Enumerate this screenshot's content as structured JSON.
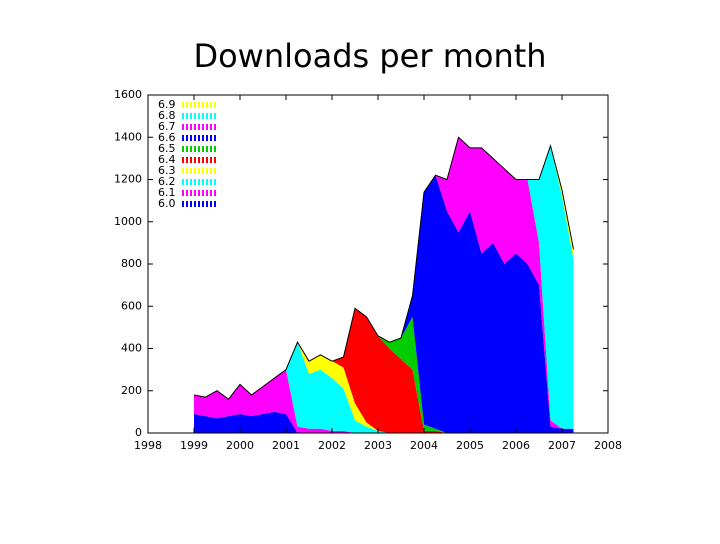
{
  "chart_data": {
    "type": "stacked_area",
    "title": "Downloads per month",
    "x": [
      1999,
      1999.25,
      1999.5,
      1999.75,
      2000,
      2000.25,
      2000.5,
      2000.75,
      2001,
      2001.25,
      2001.5,
      2001.75,
      2002,
      2002.25,
      2002.5,
      2002.75,
      2003,
      2003.25,
      2003.5,
      2003.75,
      2004,
      2004.25,
      2004.5,
      2004.75,
      2005,
      2005.25,
      2005.5,
      2005.75,
      2006,
      2006.25,
      2006.5,
      2006.75,
      2007,
      2007.25
    ],
    "series": [
      {
        "name": "6.0",
        "color": "#0000ff",
        "values": [
          90,
          80,
          70,
          80,
          90,
          80,
          90,
          100,
          90,
          0,
          0,
          0,
          0,
          0,
          0,
          0,
          0,
          0,
          0,
          0,
          0,
          0,
          0,
          0,
          0,
          0,
          0,
          0,
          0,
          0,
          0,
          0,
          0,
          0
        ]
      },
      {
        "name": "6.1",
        "color": "#ff00ff",
        "values": [
          90,
          90,
          130,
          80,
          140,
          100,
          130,
          160,
          210,
          30,
          20,
          20,
          10,
          10,
          0,
          0,
          0,
          0,
          0,
          0,
          0,
          0,
          0,
          0,
          0,
          0,
          0,
          0,
          0,
          0,
          0,
          0,
          0,
          0
        ]
      },
      {
        "name": "6.2",
        "color": "#00ffff",
        "values": [
          0,
          0,
          0,
          0,
          0,
          0,
          0,
          0,
          0,
          400,
          260,
          280,
          250,
          200,
          60,
          30,
          10,
          0,
          0,
          0,
          0,
          0,
          0,
          0,
          0,
          0,
          0,
          0,
          0,
          0,
          0,
          0,
          0,
          0
        ]
      },
      {
        "name": "6.3",
        "color": "#ffff00",
        "values": [
          0,
          0,
          0,
          0,
          0,
          0,
          0,
          0,
          0,
          0,
          60,
          70,
          80,
          100,
          80,
          20,
          0,
          0,
          0,
          0,
          0,
          0,
          0,
          0,
          0,
          0,
          0,
          0,
          0,
          0,
          0,
          0,
          0,
          0
        ]
      },
      {
        "name": "6.4",
        "color": "#ff0000",
        "values": [
          0,
          0,
          0,
          0,
          0,
          0,
          0,
          0,
          0,
          0,
          0,
          0,
          0,
          50,
          450,
          500,
          450,
          400,
          350,
          300,
          10,
          10,
          0,
          0,
          0,
          0,
          0,
          0,
          0,
          0,
          0,
          0,
          0,
          0
        ]
      },
      {
        "name": "6.5",
        "color": "#00cc00",
        "values": [
          0,
          0,
          0,
          0,
          0,
          0,
          0,
          0,
          0,
          0,
          0,
          0,
          0,
          0,
          0,
          0,
          0,
          30,
          100,
          250,
          30,
          10,
          0,
          0,
          0,
          0,
          0,
          0,
          0,
          0,
          0,
          0,
          0,
          0
        ]
      },
      {
        "name": "6.6",
        "color": "#0000ff",
        "values": [
          0,
          0,
          0,
          0,
          0,
          0,
          0,
          0,
          0,
          0,
          0,
          0,
          0,
          0,
          0,
          0,
          0,
          0,
          0,
          100,
          1100,
          1200,
          1050,
          950,
          1050,
          850,
          900,
          800,
          850,
          800,
          700,
          30,
          20,
          20
        ]
      },
      {
        "name": "6.7",
        "color": "#ff00ff",
        "values": [
          0,
          0,
          0,
          0,
          0,
          0,
          0,
          0,
          0,
          0,
          0,
          0,
          0,
          0,
          0,
          0,
          0,
          0,
          0,
          0,
          0,
          0,
          150,
          450,
          300,
          500,
          400,
          450,
          350,
          400,
          200,
          30,
          0,
          0
        ]
      },
      {
        "name": "6.8",
        "color": "#00ffff",
        "values": [
          0,
          0,
          0,
          0,
          0,
          0,
          0,
          0,
          0,
          0,
          0,
          0,
          0,
          0,
          0,
          0,
          0,
          0,
          0,
          0,
          0,
          0,
          0,
          0,
          0,
          0,
          0,
          0,
          0,
          0,
          300,
          1300,
          1100,
          800
        ]
      },
      {
        "name": "6.9",
        "color": "#ffff00",
        "values": [
          0,
          0,
          0,
          0,
          0,
          0,
          0,
          0,
          0,
          0,
          0,
          0,
          0,
          0,
          0,
          0,
          0,
          0,
          0,
          0,
          0,
          0,
          0,
          0,
          0,
          0,
          0,
          0,
          0,
          0,
          0,
          0,
          30,
          50
        ]
      }
    ],
    "xlim": [
      1998,
      2008
    ],
    "xticks": [
      1998,
      1999,
      2000,
      2001,
      2002,
      2003,
      2004,
      2005,
      2006,
      2007,
      2008
    ],
    "ylim": [
      0,
      1600
    ],
    "yticks": [
      0,
      200,
      400,
      600,
      800,
      1000,
      1200,
      1400,
      1600
    ],
    "legend": "upper left"
  }
}
